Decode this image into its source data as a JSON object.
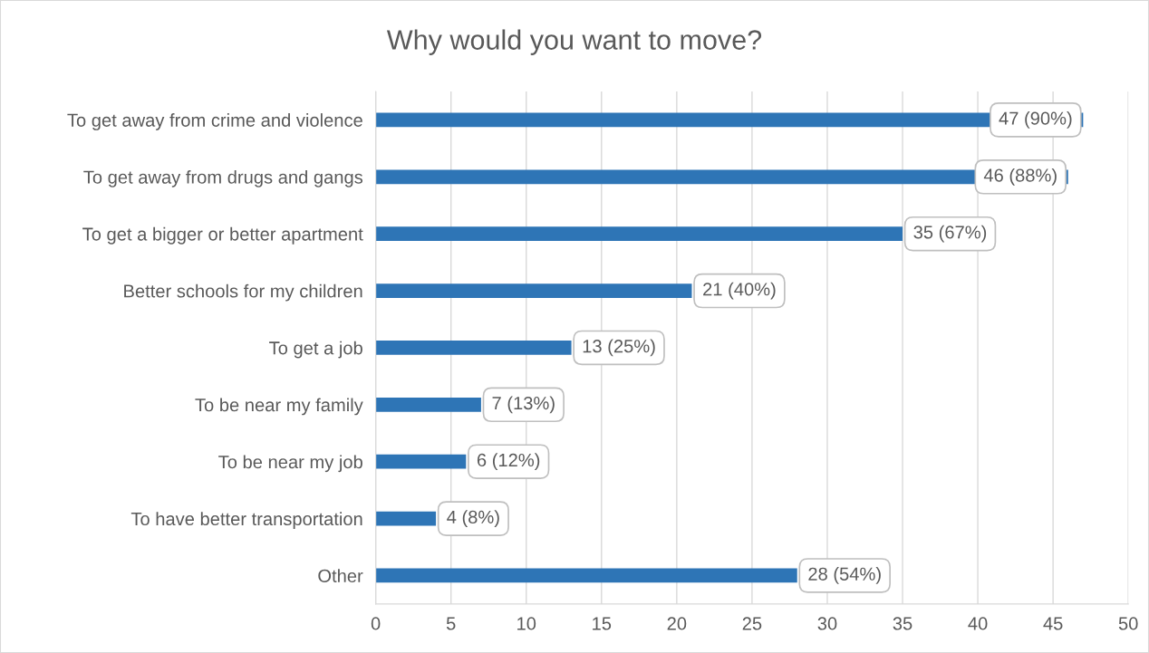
{
  "chart_data": {
    "type": "bar",
    "orientation": "horizontal",
    "title": "Why would you want to move?",
    "categories": [
      "To get away from crime and violence",
      "To get away from drugs and gangs",
      "To get a bigger or better apartment",
      "Better schools for my children",
      "To get a job",
      "To be near my family",
      "To be near my job",
      "To have better transportation",
      "Other"
    ],
    "values": [
      47,
      46,
      35,
      21,
      13,
      7,
      6,
      4,
      28
    ],
    "value_labels": [
      "47 (90%)",
      "46 (88%)",
      "35 (67%)",
      "21 (40%)",
      "13 (25%)",
      "7 (13%)",
      "6 (12%)",
      "4 (8%)",
      "28 (54%)"
    ],
    "color": "#2e75b6",
    "xlim": [
      0,
      50
    ],
    "xticks": [
      0,
      5,
      10,
      15,
      20,
      25,
      30,
      35,
      40,
      45,
      50
    ],
    "grid": "x",
    "legend": false
  }
}
